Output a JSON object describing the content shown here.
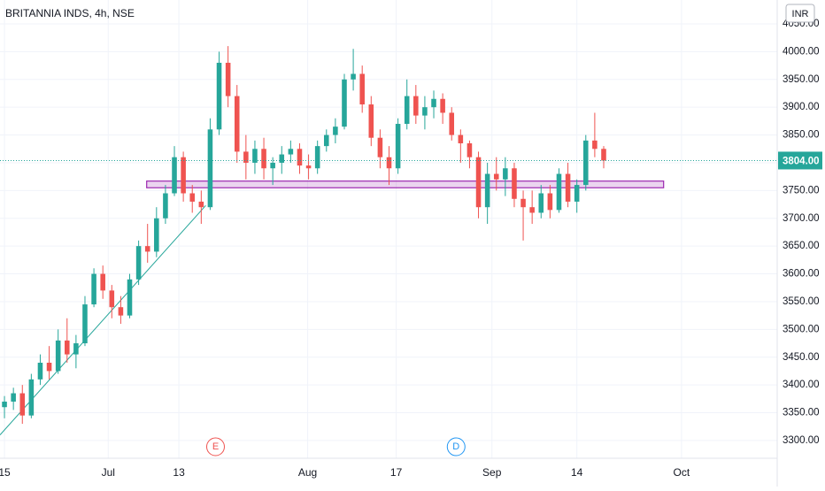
{
  "chart_data": {
    "type": "candlestick",
    "title": "BRITANNIA INDS, 4h, NSE",
    "currency": "INR",
    "open": [
      3360,
      3370,
      3385,
      3345,
      3410,
      3440,
      3425,
      3480,
      3455,
      3475,
      3545,
      3600,
      3570,
      3540,
      3525,
      3590,
      3650,
      3640,
      3700,
      3745,
      3810,
      3745,
      3730,
      3720,
      3860,
      3980,
      3920,
      3820,
      3800,
      3825,
      3790,
      3800,
      3815,
      3825,
      3795,
      3790,
      3830,
      3850,
      3865,
      3950,
      3960,
      3905,
      3845,
      3810,
      3790,
      3870,
      3920,
      3885,
      3900,
      3915,
      3890,
      3850,
      3835,
      3810,
      3720,
      3780,
      3770,
      3790,
      3735,
      3720,
      3710,
      3745,
      3715,
      3780,
      3730,
      3760,
      3840,
      3825
    ],
    "high": [
      3380,
      3395,
      3400,
      3420,
      3455,
      3470,
      3500,
      3520,
      3490,
      3560,
      3610,
      3615,
      3580,
      3560,
      3600,
      3660,
      3690,
      3720,
      3760,
      3830,
      3820,
      3760,
      3750,
      3880,
      4000,
      4010,
      3940,
      3850,
      3840,
      3845,
      3810,
      3830,
      3840,
      3835,
      3815,
      3840,
      3860,
      3880,
      3960,
      4005,
      3975,
      3920,
      3860,
      3830,
      3880,
      3950,
      3940,
      3920,
      3930,
      3925,
      3900,
      3860,
      3840,
      3820,
      3800,
      3810,
      3810,
      3800,
      3750,
      3750,
      3760,
      3760,
      3790,
      3800,
      3770,
      3850,
      3890,
      3830
    ],
    "low": [
      3340,
      3355,
      3330,
      3340,
      3400,
      3410,
      3420,
      3440,
      3430,
      3470,
      3540,
      3555,
      3520,
      3510,
      3520,
      3580,
      3620,
      3630,
      3690,
      3740,
      3730,
      3710,
      3690,
      3715,
      3850,
      3900,
      3800,
      3770,
      3780,
      3770,
      3760,
      3780,
      3800,
      3780,
      3770,
      3780,
      3820,
      3835,
      3860,
      3930,
      3890,
      3830,
      3790,
      3760,
      3780,
      3860,
      3870,
      3860,
      3880,
      3870,
      3840,
      3800,
      3790,
      3700,
      3690,
      3750,
      3740,
      3720,
      3660,
      3690,
      3700,
      3700,
      3710,
      3720,
      3710,
      3750,
      3810,
      3790
    ],
    "close": [
      3370,
      3385,
      3345,
      3410,
      3440,
      3425,
      3480,
      3455,
      3475,
      3545,
      3600,
      3570,
      3540,
      3525,
      3590,
      3650,
      3640,
      3700,
      3745,
      3810,
      3745,
      3730,
      3720,
      3860,
      3980,
      3920,
      3820,
      3800,
      3825,
      3790,
      3800,
      3815,
      3825,
      3795,
      3790,
      3830,
      3850,
      3865,
      3950,
      3960,
      3905,
      3845,
      3810,
      3790,
      3870,
      3920,
      3885,
      3900,
      3915,
      3890,
      3850,
      3835,
      3810,
      3720,
      3780,
      3770,
      3790,
      3735,
      3720,
      3710,
      3745,
      3715,
      3780,
      3730,
      3760,
      3840,
      3825,
      3804
    ],
    "up_color": "#26a69a",
    "down_color": "#ef5350",
    "xlim": [
      -0.5,
      86.4
    ],
    "ylim": [
      3268,
      4093
    ],
    "xticks": [
      {
        "value": 0,
        "label": "15"
      },
      {
        "value": 11.6,
        "label": "Jul"
      },
      {
        "value": 19.5,
        "label": "13"
      },
      {
        "value": 33.9,
        "label": "Aug"
      },
      {
        "value": 43.8,
        "label": "17"
      },
      {
        "value": 54.5,
        "label": "Sep"
      },
      {
        "value": 64,
        "label": "14"
      },
      {
        "value": 75.7,
        "label": "Oct"
      }
    ],
    "yticks": [
      {
        "value": 3300,
        "label": "3300.00"
      },
      {
        "value": 3350,
        "label": "3350.00"
      },
      {
        "value": 3400,
        "label": "3400.00"
      },
      {
        "value": 3450,
        "label": "3450.00"
      },
      {
        "value": 3500,
        "label": "3500.00"
      },
      {
        "value": 3550,
        "label": "3550.00"
      },
      {
        "value": 3600,
        "label": "3600.00"
      },
      {
        "value": 3650,
        "label": "3650.00"
      },
      {
        "value": 3700,
        "label": "3700.00"
      },
      {
        "value": 3750,
        "label": "3750.00"
      },
      {
        "value": 3800,
        "label": "3800.00"
      },
      {
        "value": 3850,
        "label": "3850.00"
      },
      {
        "value": 3900,
        "label": "3900.00"
      },
      {
        "value": 3950,
        "label": "3950.00"
      },
      {
        "value": 4000,
        "label": "4000.00"
      },
      {
        "value": 4050,
        "label": "4050.00"
      }
    ],
    "grid": true,
    "last_price": {
      "value": 3804,
      "label": "3804.00"
    },
    "trendline": {
      "x": [
        -0.5,
        22.5
      ],
      "y": [
        3310,
        3723
      ],
      "color": "#26a69a"
    },
    "zone": {
      "x": [
        15.9,
        73.7
      ],
      "y": [
        3755,
        3767
      ],
      "color": "#9c27b0"
    },
    "events": [
      {
        "label": "E",
        "x": 23.6,
        "color": "#ef5350"
      },
      {
        "label": "D",
        "x": 50.5,
        "color": "#2196f3"
      }
    ]
  }
}
